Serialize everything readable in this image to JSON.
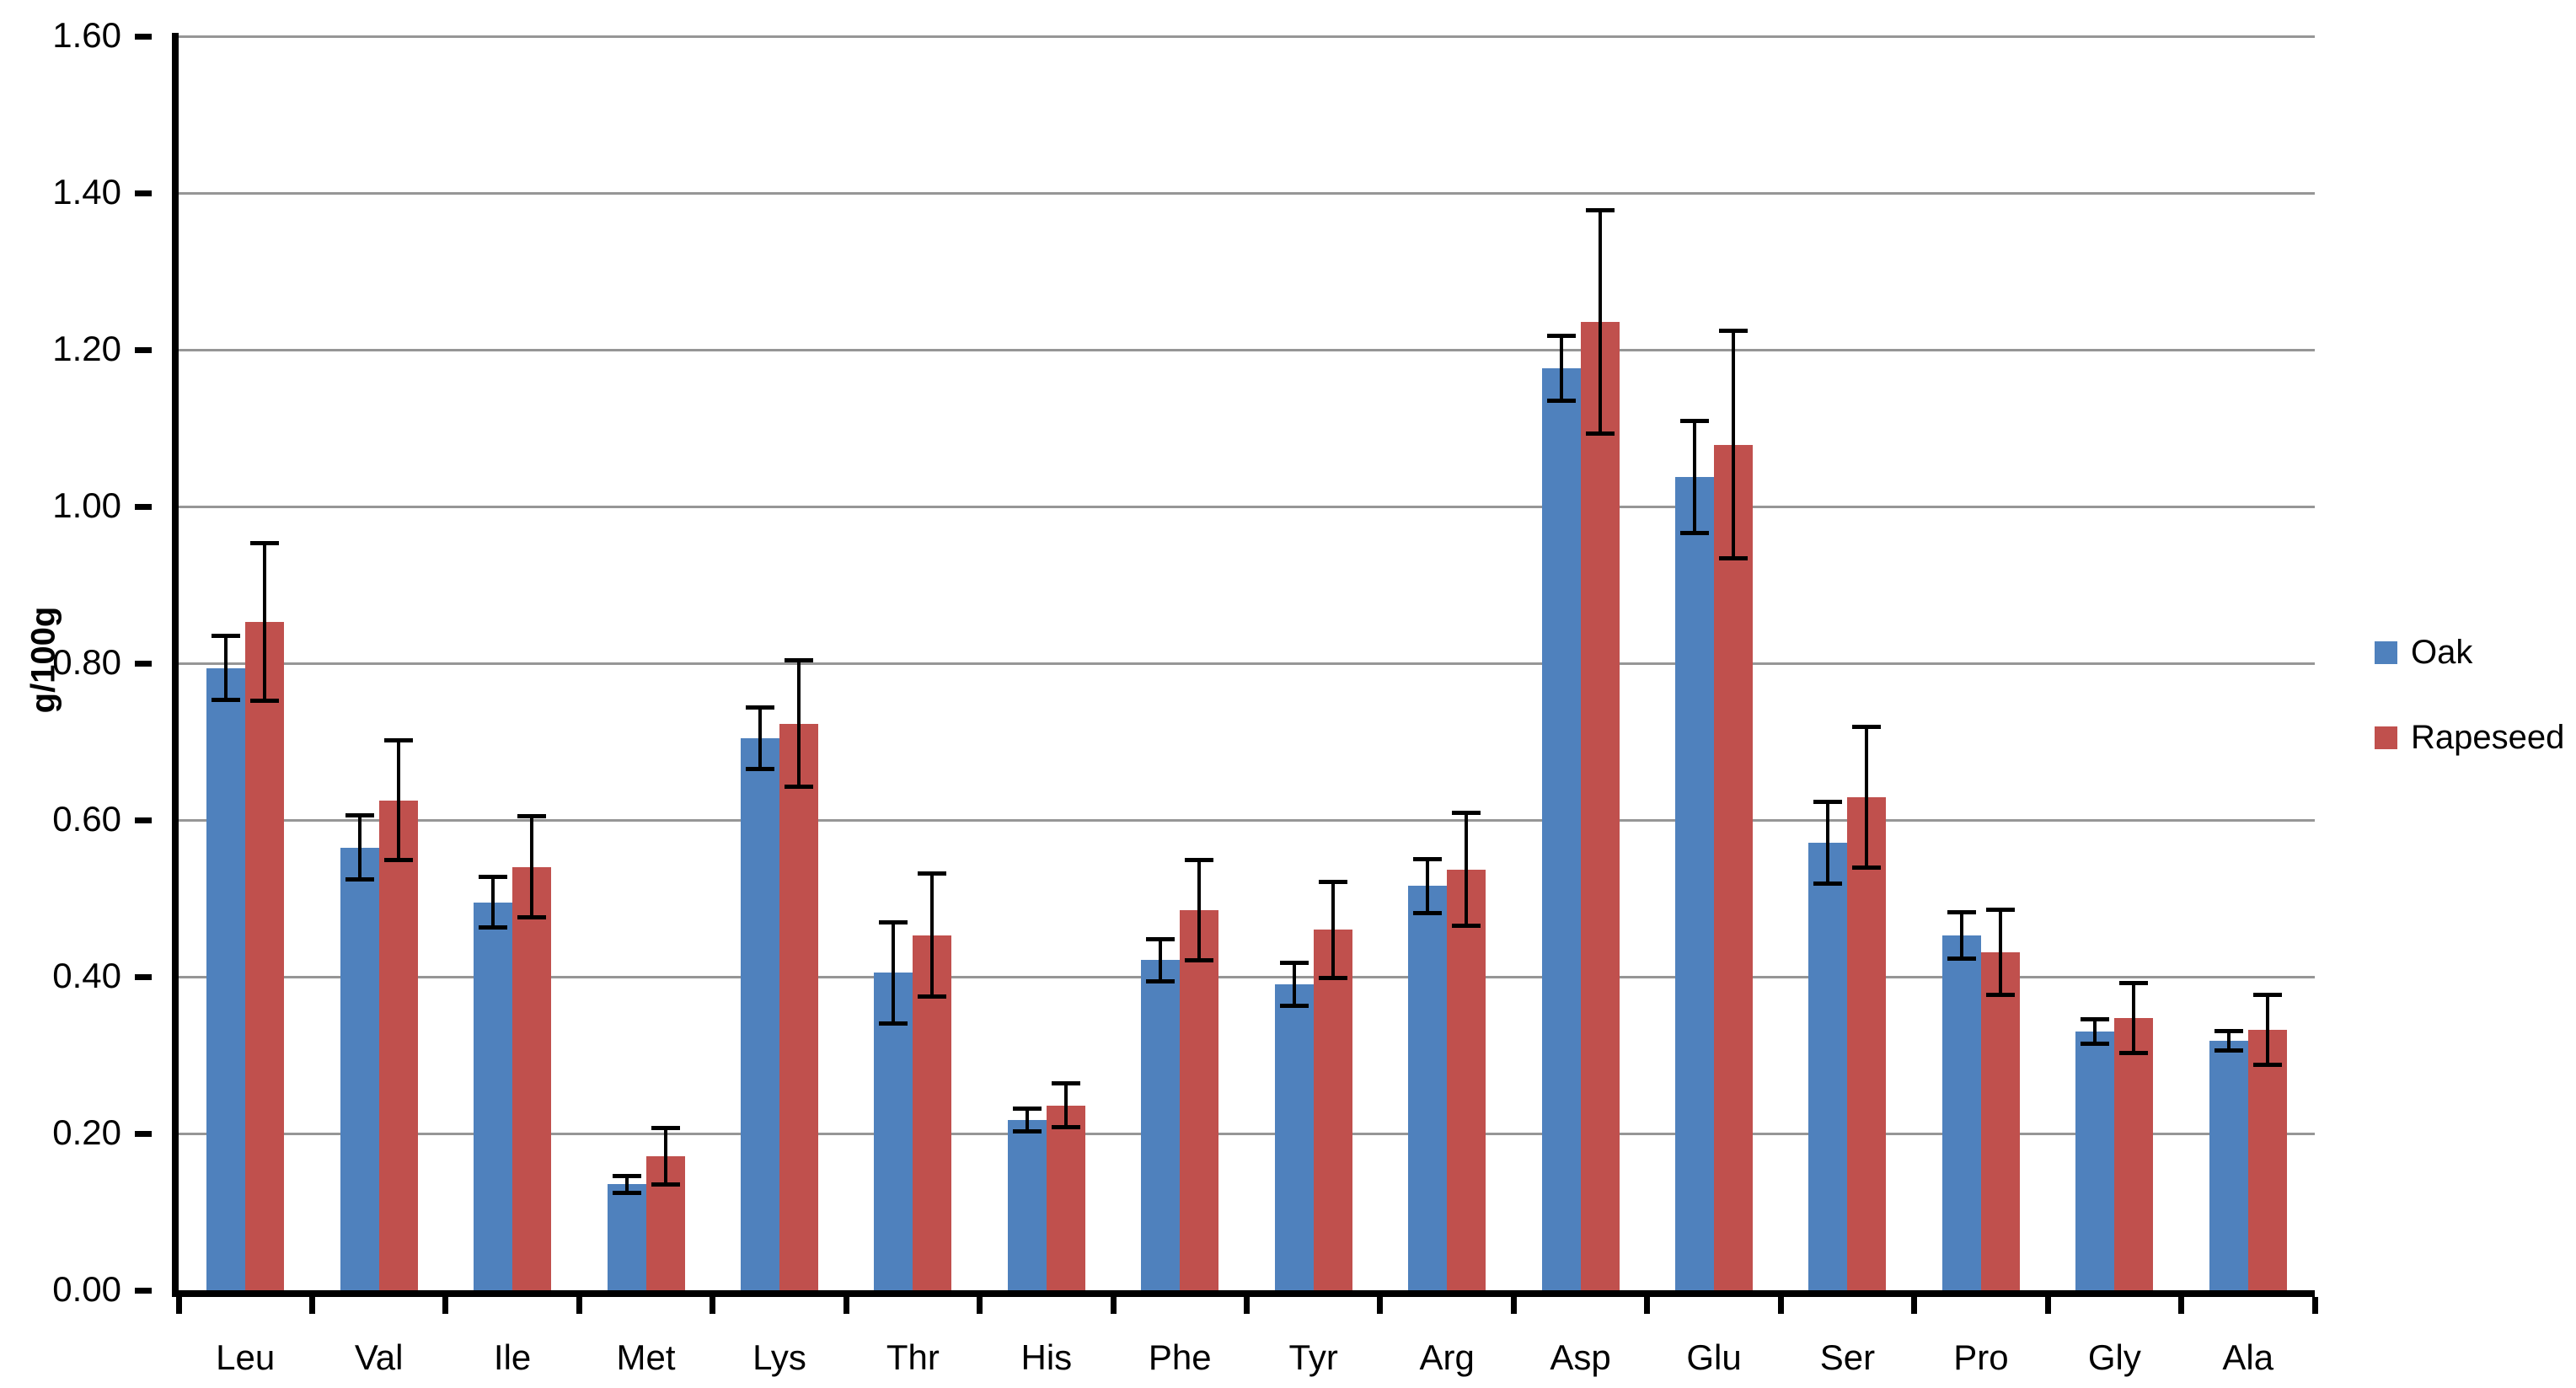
{
  "chart_data": {
    "type": "bar",
    "title": "",
    "xlabel": "",
    "ylabel": "g/100g",
    "ylim": [
      0,
      1.6
    ],
    "ytick_step": 0.2,
    "ytick_labels": [
      "0.00",
      "0.20",
      "0.40",
      "0.60",
      "0.80",
      "1.00",
      "1.20",
      "1.40",
      "1.60"
    ],
    "grid": true,
    "grid_color": "#969696",
    "legend_position": "right",
    "categories": [
      "Leu",
      "Val",
      "Ile",
      "Met",
      "Lys",
      "Thr",
      "His",
      "Phe",
      "Tyr",
      "Arg",
      "Asp",
      "Glu",
      "Ser",
      "Pro",
      "Gly",
      "Ala"
    ],
    "series": [
      {
        "name": "Oak",
        "color": "#4F81BD",
        "values": [
          0.794,
          0.565,
          0.495,
          0.135,
          0.704,
          0.405,
          0.217,
          0.421,
          0.39,
          0.516,
          1.176,
          1.038,
          0.571,
          0.453,
          0.33,
          0.318
        ],
        "errors": [
          0.041,
          0.041,
          0.033,
          0.011,
          0.04,
          0.065,
          0.015,
          0.027,
          0.028,
          0.035,
          0.042,
          0.072,
          0.053,
          0.03,
          0.016,
          0.013
        ]
      },
      {
        "name": "Rapeseed",
        "color": "#C0504D",
        "values": [
          0.853,
          0.625,
          0.54,
          0.171,
          0.723,
          0.453,
          0.236,
          0.485,
          0.46,
          0.537,
          1.236,
          1.079,
          0.629,
          0.431,
          0.347,
          0.332
        ],
        "errors": [
          0.101,
          0.077,
          0.065,
          0.037,
          0.081,
          0.079,
          0.028,
          0.065,
          0.062,
          0.073,
          0.143,
          0.146,
          0.09,
          0.055,
          0.045,
          0.045
        ]
      }
    ]
  }
}
